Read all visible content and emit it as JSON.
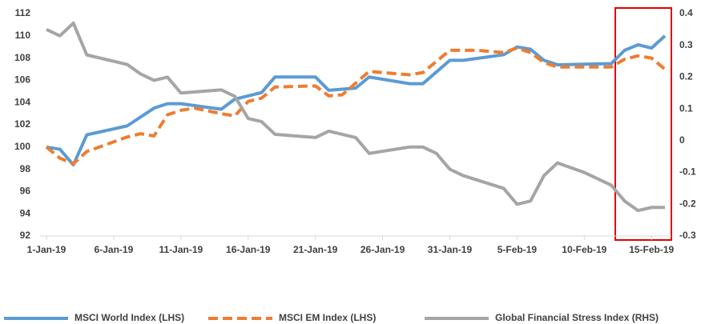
{
  "chart_data": {
    "type": "line",
    "xlim": [
      1,
      47
    ],
    "xticks": [
      {
        "value": 1,
        "label": "1-Jan-19"
      },
      {
        "value": 6,
        "label": "6-Jan-19"
      },
      {
        "value": 11,
        "label": "11-Jan-19"
      },
      {
        "value": 16,
        "label": "16-Jan-19"
      },
      {
        "value": 21,
        "label": "21-Jan-19"
      },
      {
        "value": 26,
        "label": "26-Jan-19"
      },
      {
        "value": 31,
        "label": "31-Jan-19"
      },
      {
        "value": 36,
        "label": "5-Feb-19"
      },
      {
        "value": 41,
        "label": "10-Feb-19"
      },
      {
        "value": 46,
        "label": "15-Feb-19"
      }
    ],
    "ylim": [
      92,
      112
    ],
    "yticks": [
      92,
      94,
      96,
      98,
      100,
      102,
      104,
      106,
      108,
      110,
      112
    ],
    "y2lim": [
      -0.3,
      0.4
    ],
    "y2ticks": [
      -0.3,
      -0.2,
      -0.1,
      0,
      0.1,
      0.2,
      0.3,
      0.4
    ],
    "grid": false,
    "legend": "bottom",
    "series": [
      {
        "name": "MSCI World Index (LHS)",
        "color": "#5b9bd5",
        "dash": false,
        "x": [
          1,
          2,
          3,
          4,
          7,
          9,
          10,
          11,
          14,
          15,
          17,
          18,
          21,
          22,
          24,
          25,
          28,
          29,
          31,
          32,
          35,
          36,
          37,
          38,
          39,
          43,
          44,
          45,
          46,
          47
        ],
        "values": [
          100,
          99.8,
          98.4,
          101.1,
          101.9,
          103.5,
          103.9,
          103.9,
          103.4,
          104.3,
          104.9,
          106.3,
          106.3,
          105.1,
          105.3,
          106.3,
          105.7,
          105.7,
          107.8,
          107.8,
          108.3,
          109,
          108.8,
          107.8,
          107.4,
          107.5,
          108.7,
          109.2,
          108.9,
          110
        ]
      },
      {
        "name": "MSCI EM Index (LHS)",
        "color": "#ed7d31",
        "dash": true,
        "x": [
          1,
          2,
          3,
          4,
          7,
          8,
          9,
          10,
          11,
          12,
          14,
          15,
          16,
          17,
          18,
          21,
          22,
          23,
          25,
          28,
          29,
          31,
          33,
          35,
          36,
          37,
          38,
          39,
          43,
          44,
          45,
          46,
          47
        ],
        "values": [
          100,
          99,
          98.5,
          99.6,
          100.9,
          101.2,
          101,
          102.9,
          103.3,
          103.5,
          103,
          102.8,
          104.1,
          104.4,
          105.4,
          105.5,
          104.6,
          104.7,
          106.8,
          106.5,
          106.7,
          108.7,
          108.7,
          108.5,
          108.9,
          108.5,
          107.6,
          107.2,
          107.2,
          107.9,
          108.2,
          108,
          107
        ]
      },
      {
        "name": "Global Financial Stress Index (RHS)",
        "color": "#a5a5a5",
        "dash": false,
        "axis": "y2",
        "x": [
          1,
          2,
          3,
          4,
          7,
          8,
          9,
          10,
          11,
          14,
          15,
          16,
          17,
          18,
          21,
          22,
          24,
          25,
          28,
          29,
          30,
          31,
          32,
          35,
          36,
          37,
          38,
          39,
          41,
          43,
          44,
          45,
          46,
          47
        ],
        "values": [
          0.35,
          0.33,
          0.37,
          0.27,
          0.24,
          0.21,
          0.19,
          0.2,
          0.15,
          0.16,
          0.14,
          0.07,
          0.06,
          0.02,
          0.01,
          0.03,
          0.01,
          -0.04,
          -0.02,
          -0.02,
          -0.04,
          -0.09,
          -0.11,
          -0.15,
          -0.2,
          -0.19,
          -0.11,
          -0.07,
          -0.1,
          -0.14,
          -0.19,
          -0.22,
          -0.21,
          -0.21
        ]
      }
    ]
  }
}
